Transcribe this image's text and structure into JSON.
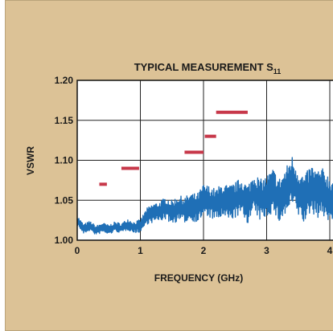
{
  "chart_data": {
    "type": "line",
    "title": "TYPICAL MEASUREMENT S",
    "title_subscript": "11",
    "xlabel": "FREQUENCY (GHz)",
    "ylabel": "VSWR",
    "xlim": [
      0,
      4
    ],
    "ylim": [
      1.0,
      1.2
    ],
    "xticks": [
      0,
      1,
      2,
      3,
      4
    ],
    "yticks": [
      1.0,
      1.05,
      1.1,
      1.15,
      1.2
    ],
    "ytick_labels": [
      "1.00",
      "1.05",
      "1.10",
      "1.15",
      "1.20"
    ],
    "xtick_labels": [
      "0",
      "1",
      "2",
      "3",
      "4"
    ],
    "grid": true,
    "series": [
      {
        "kind": "measured-trace",
        "color": "#1f6fb6",
        "x": [
          0.0,
          0.1,
          0.2,
          0.3,
          0.4,
          0.5,
          0.6,
          0.7,
          0.8,
          0.9,
          1.0,
          1.1,
          1.2,
          1.3,
          1.4,
          1.5,
          1.6,
          1.7,
          1.8,
          1.9,
          2.0,
          2.1,
          2.2,
          2.3,
          2.4,
          2.5,
          2.6,
          2.7,
          2.8,
          2.9,
          3.0,
          3.1,
          3.2,
          3.3,
          3.4,
          3.5,
          3.6,
          3.7,
          3.8,
          3.9,
          4.0
        ],
        "y": [
          1.025,
          1.014,
          1.018,
          1.012,
          1.016,
          1.013,
          1.017,
          1.015,
          1.02,
          1.016,
          1.018,
          1.03,
          1.034,
          1.036,
          1.04,
          1.035,
          1.04,
          1.038,
          1.042,
          1.04,
          1.05,
          1.048,
          1.044,
          1.05,
          1.046,
          1.05,
          1.055,
          1.045,
          1.06,
          1.05,
          1.055,
          1.062,
          1.05,
          1.06,
          1.075,
          1.06,
          1.05,
          1.065,
          1.058,
          1.06,
          1.05
        ],
        "noise_amplitude": [
          0.006,
          0.006,
          0.006,
          0.006,
          0.006,
          0.006,
          0.006,
          0.006,
          0.007,
          0.007,
          0.008,
          0.01,
          0.012,
          0.012,
          0.014,
          0.015,
          0.016,
          0.016,
          0.017,
          0.018,
          0.02,
          0.02,
          0.02,
          0.022,
          0.022,
          0.022,
          0.024,
          0.024,
          0.026,
          0.026,
          0.026,
          0.028,
          0.028,
          0.03,
          0.032,
          0.03,
          0.03,
          0.03,
          0.03,
          0.03,
          0.03
        ]
      },
      {
        "kind": "spec-limits",
        "color": "#c7384a",
        "segments": [
          {
            "x0": 0.35,
            "x1": 0.47,
            "y": 1.07
          },
          {
            "x0": 0.7,
            "x1": 0.98,
            "y": 1.09
          },
          {
            "x0": 1.7,
            "x1": 2.0,
            "y": 1.11
          },
          {
            "x0": 2.02,
            "x1": 2.2,
            "y": 1.13
          },
          {
            "x0": 2.2,
            "x1": 2.7,
            "y": 1.16
          }
        ]
      }
    ]
  }
}
